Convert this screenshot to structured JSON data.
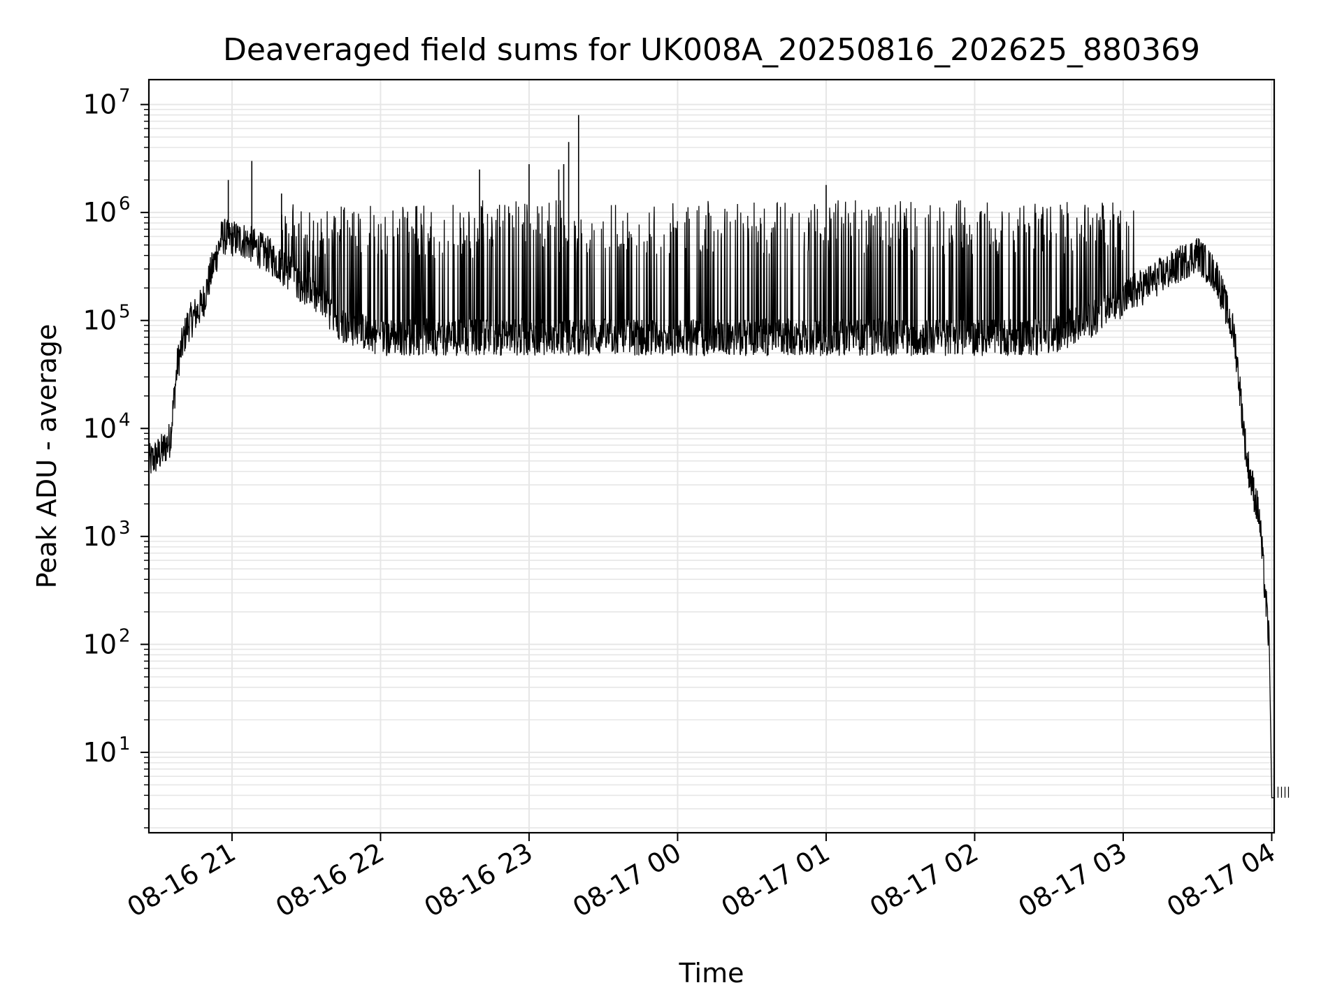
{
  "chart_data": {
    "type": "line",
    "title": "Deaveraged field sums for UK008A_20250816_202625_880369",
    "xlabel": "Time",
    "ylabel": "Peak ADU - average",
    "yscale": "log",
    "ylim": [
      1.8,
      17000000
    ],
    "xlim": [
      "2025-08-16T20:26:25",
      "2025-08-17T04:01:00"
    ],
    "grid": true,
    "x_ticks": [
      {
        "value": "2025-08-16T21:00:00",
        "label": "08-16 21"
      },
      {
        "value": "2025-08-16T22:00:00",
        "label": "08-16 22"
      },
      {
        "value": "2025-08-16T23:00:00",
        "label": "08-16 23"
      },
      {
        "value": "2025-08-17T00:00:00",
        "label": "08-17 00"
      },
      {
        "value": "2025-08-17T01:00:00",
        "label": "08-17 01"
      },
      {
        "value": "2025-08-17T02:00:00",
        "label": "08-17 02"
      },
      {
        "value": "2025-08-17T03:00:00",
        "label": "08-17 03"
      },
      {
        "value": "2025-08-17T04:00:00",
        "label": "08-17 04"
      }
    ],
    "y_ticks": [
      {
        "value": 10,
        "base": "10",
        "exp": "1"
      },
      {
        "value": 100,
        "base": "10",
        "exp": "2"
      },
      {
        "value": 1000,
        "base": "10",
        "exp": "3"
      },
      {
        "value": 10000,
        "base": "10",
        "exp": "4"
      },
      {
        "value": 100000,
        "base": "10",
        "exp": "5"
      },
      {
        "value": 1000000,
        "base": "10",
        "exp": "6"
      },
      {
        "value": 10000000,
        "base": "10",
        "exp": "7"
      }
    ],
    "series": [
      {
        "line_color": "#000000",
        "baseline_points": [
          {
            "x": "2025-08-16T20:26:25",
            "y": 4800
          },
          {
            "x": "2025-08-16T20:32:00",
            "y": 6200
          },
          {
            "x": "2025-08-16T20:35:00",
            "y": 8000
          },
          {
            "x": "2025-08-16T20:38:00",
            "y": 40000
          },
          {
            "x": "2025-08-16T20:42:00",
            "y": 90000
          },
          {
            "x": "2025-08-16T20:48:00",
            "y": 140000
          },
          {
            "x": "2025-08-16T20:52:00",
            "y": 300000
          },
          {
            "x": "2025-08-16T20:56:00",
            "y": 600000
          },
          {
            "x": "2025-08-16T21:05:00",
            "y": 550000
          },
          {
            "x": "2025-08-16T21:15:00",
            "y": 400000
          },
          {
            "x": "2025-08-16T21:30:00",
            "y": 200000
          },
          {
            "x": "2025-08-16T21:45:00",
            "y": 90000
          },
          {
            "x": "2025-08-16T22:00:00",
            "y": 70000
          },
          {
            "x": "2025-08-17T02:30:00",
            "y": 70000
          },
          {
            "x": "2025-08-17T02:50:00",
            "y": 110000
          },
          {
            "x": "2025-08-17T03:00:00",
            "y": 160000
          },
          {
            "x": "2025-08-17T03:10:00",
            "y": 220000
          },
          {
            "x": "2025-08-17T03:20:00",
            "y": 300000
          },
          {
            "x": "2025-08-17T03:30:00",
            "y": 420000
          },
          {
            "x": "2025-08-17T03:38:00",
            "y": 250000
          },
          {
            "x": "2025-08-17T03:45:00",
            "y": 70000
          },
          {
            "x": "2025-08-17T03:50:00",
            "y": 5000
          },
          {
            "x": "2025-08-17T03:55:00",
            "y": 1500
          },
          {
            "x": "2025-08-17T03:59:00",
            "y": 100
          },
          {
            "x": "2025-08-17T04:00:00",
            "y": 3.8
          },
          {
            "x": "2025-08-17T04:01:00",
            "y": 3.8
          }
        ],
        "spikes": [
          {
            "x": "2025-08-16T20:58:30",
            "y": 2000000
          },
          {
            "x": "2025-08-16T21:08:00",
            "y": 3000000
          },
          {
            "x": "2025-08-16T21:20:00",
            "y": 1500000
          },
          {
            "x": "2025-08-16T22:40:00",
            "y": 2500000
          },
          {
            "x": "2025-08-16T23:00:00",
            "y": 2800000
          },
          {
            "x": "2025-08-16T23:12:00",
            "y": 2500000
          },
          {
            "x": "2025-08-16T23:14:00",
            "y": 2800000
          },
          {
            "x": "2025-08-16T23:16:00",
            "y": 4500000
          },
          {
            "x": "2025-08-16T23:20:00",
            "y": 8000000
          },
          {
            "x": "2025-08-17T01:00:00",
            "y": 1800000
          }
        ],
        "dense_spike_regions": [
          {
            "start": "2025-08-16T21:20:00",
            "end": "2025-08-16T22:40:00",
            "peak_y": 1200000
          },
          {
            "start": "2025-08-16T22:40:00",
            "end": "2025-08-16T23:40:00",
            "peak_y": 1300000
          },
          {
            "start": "2025-08-16T23:40:00",
            "end": "2025-08-17T03:05:00",
            "peak_y": 1300000
          }
        ]
      }
    ]
  }
}
